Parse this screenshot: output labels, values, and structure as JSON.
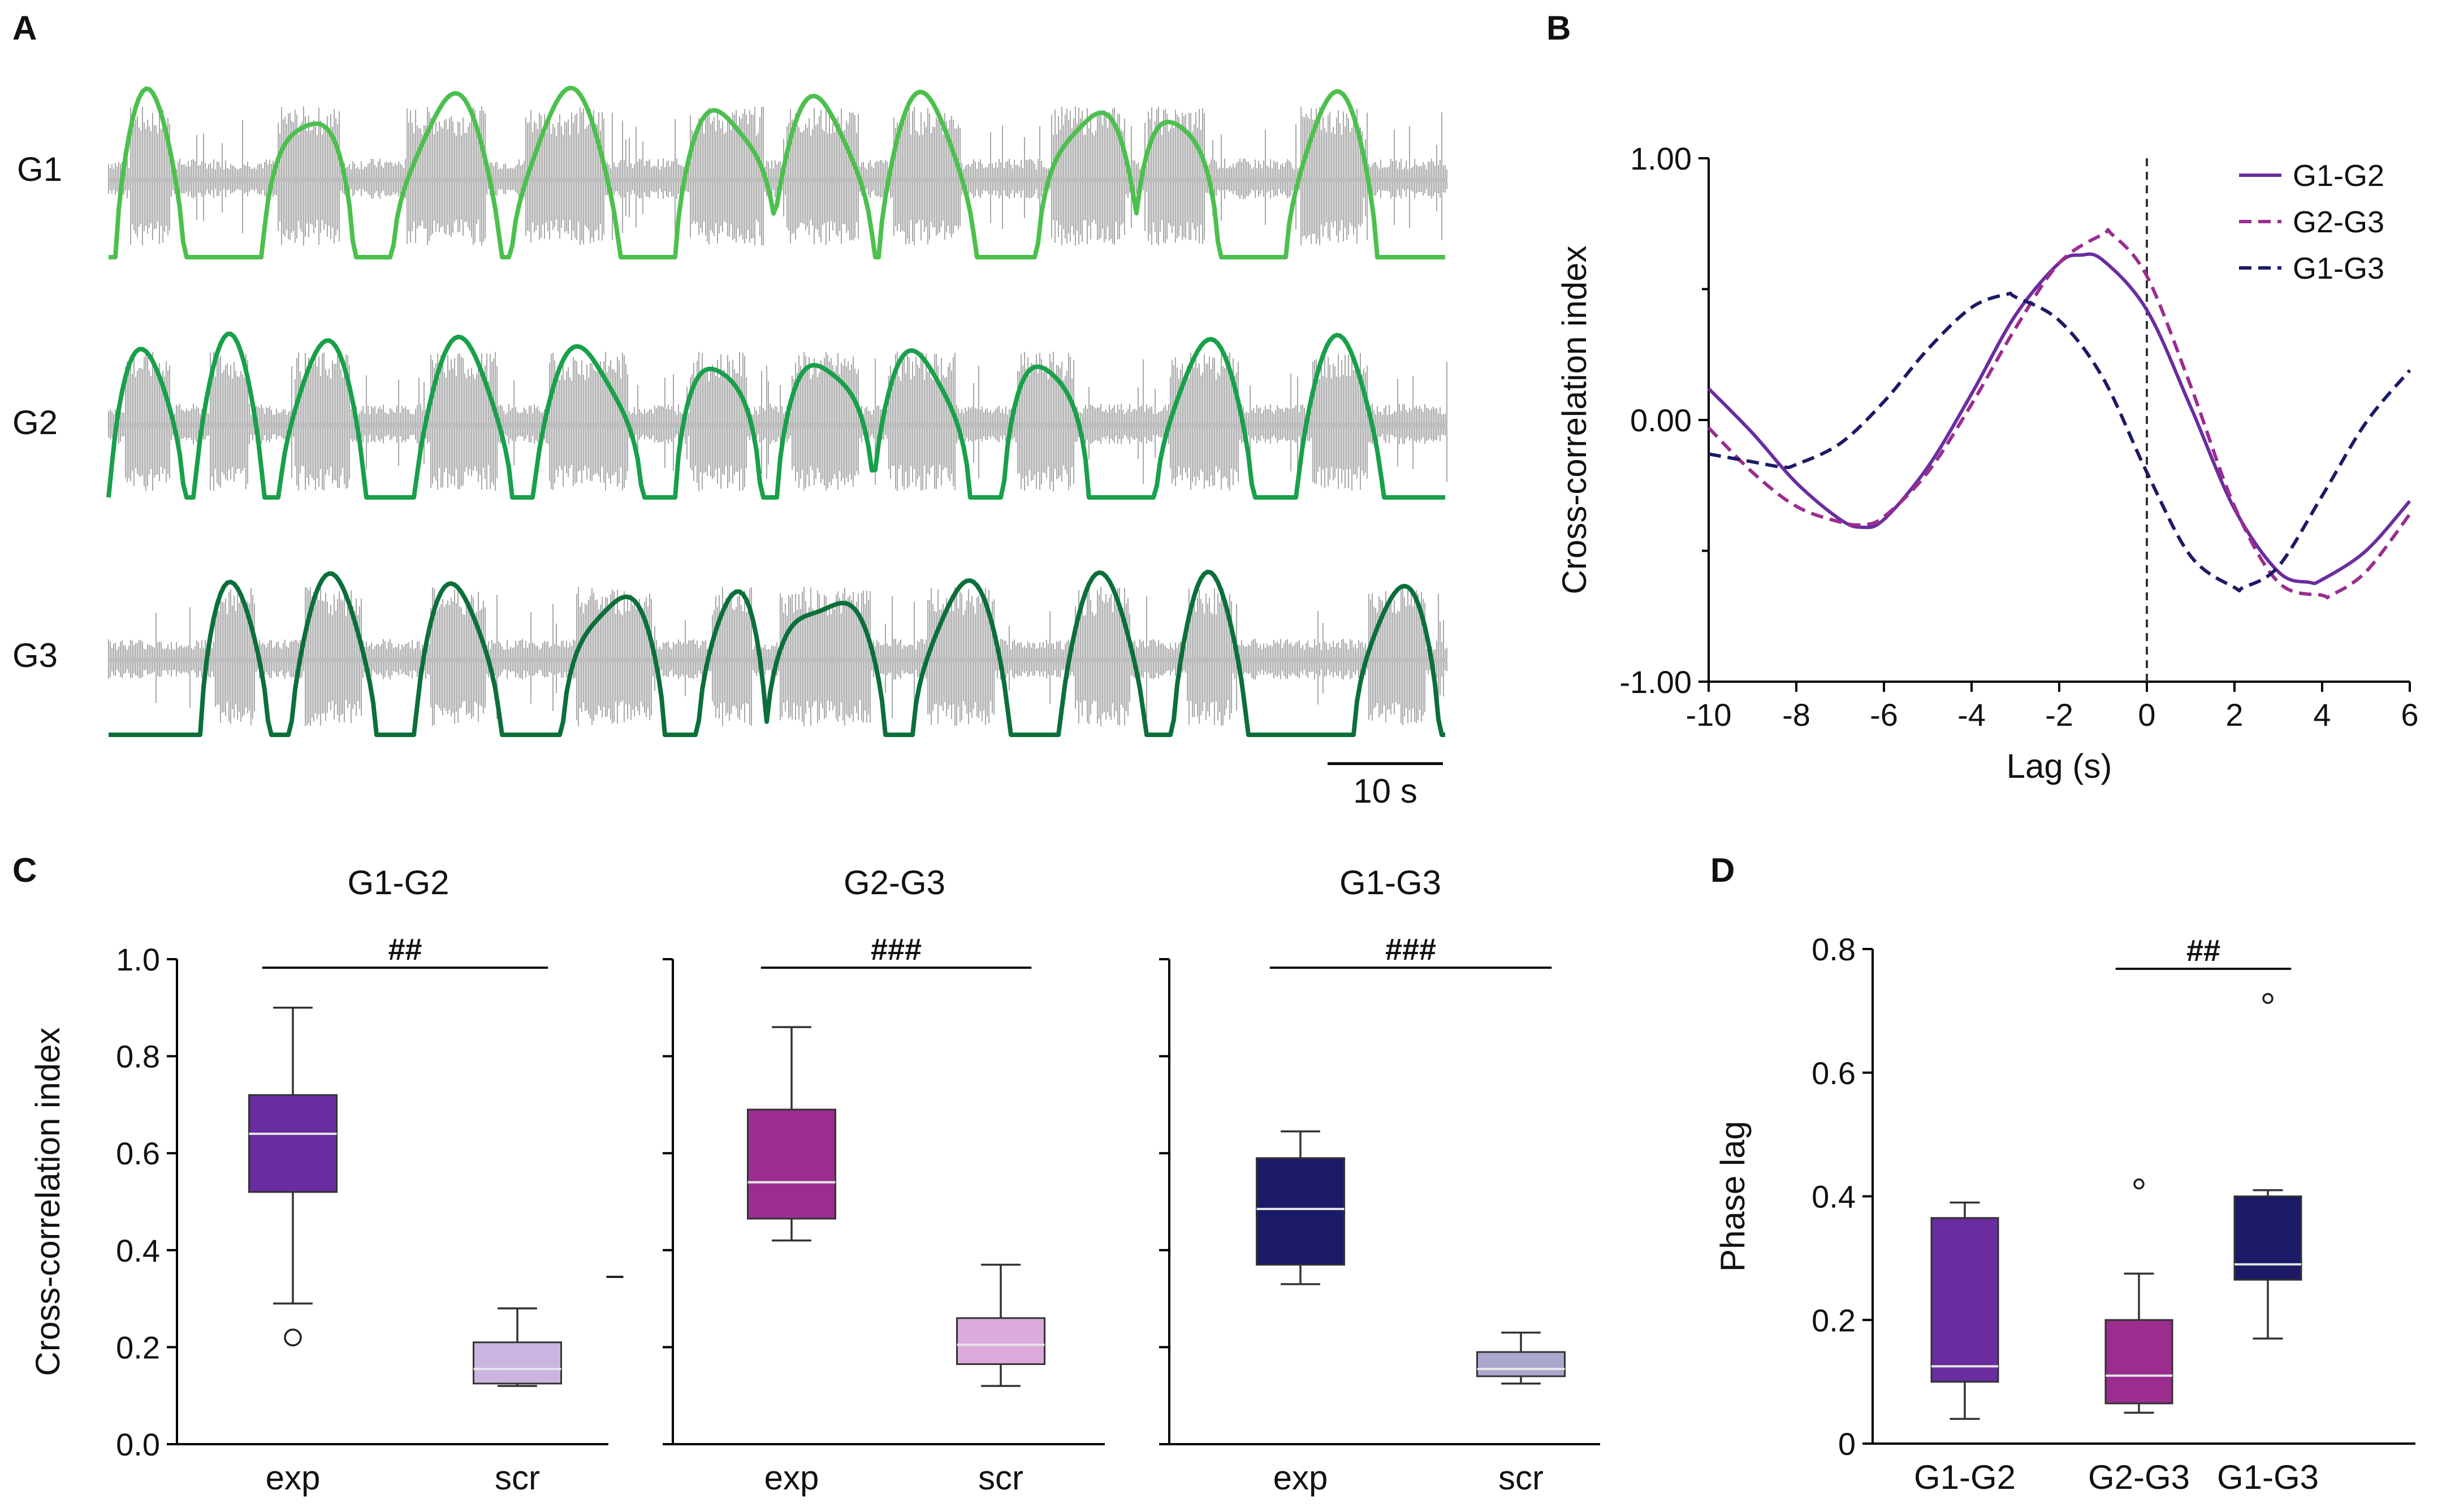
{
  "panel_labels": {
    "a": "A",
    "b": "B",
    "c": "C",
    "d": "D"
  },
  "colors": {
    "g1_envelope": "#4cc04e",
    "g2_envelope": "#18a04a",
    "g3_envelope": "#0c6f3a",
    "raw_trace": "#a8a8a8",
    "g1g2": "#6a2d9f",
    "g2g3": "#9b2d8f",
    "g1g3": "#1c1a66",
    "g1g2_scr": "#ccb4e0",
    "g2g3_scr": "#dcaadc",
    "g1g3_scr": "#aaa7cc"
  },
  "panel_a": {
    "trace_labels": [
      "G1",
      "G2",
      "G3"
    ],
    "scalebar_label": "10 s"
  },
  "chart_data": [
    {
      "id": "B",
      "type": "line",
      "xlabel": "Lag (s)",
      "ylabel": "Cross-correlation index",
      "xlim": [
        -10,
        6
      ],
      "ylim": [
        -1.0,
        1.0
      ],
      "xticks": [
        -10,
        -8,
        -6,
        -4,
        -2,
        0,
        2,
        4,
        6
      ],
      "xtick_labels": [
        "-10",
        "-8",
        "-6",
        "-4",
        "-2",
        "0",
        "2",
        "4",
        "6"
      ],
      "yticks": [
        -1,
        0,
        1
      ],
      "ytick_labels": [
        "-1.00",
        "0.00",
        "1.00"
      ],
      "vline_at": 0,
      "legend_position": "top-right",
      "series": [
        {
          "name": "G1-G2",
          "style": "solid",
          "x": [
            -10,
            -9,
            -8,
            -7,
            -6.5,
            -6,
            -5,
            -4,
            -3,
            -2,
            -1.5,
            -1,
            0,
            1,
            2,
            3,
            3.7,
            4,
            5,
            6
          ],
          "y": [
            0.12,
            -0.05,
            -0.24,
            -0.38,
            -0.41,
            -0.38,
            -0.18,
            0.1,
            0.4,
            0.6,
            0.63,
            0.61,
            0.42,
            0.05,
            -0.34,
            -0.58,
            -0.62,
            -0.61,
            -0.5,
            -0.31
          ]
        },
        {
          "name": "G2-G3",
          "style": "dashed",
          "x": [
            -10,
            -9,
            -8,
            -7,
            -6.5,
            -6,
            -5,
            -4,
            -3,
            -2,
            -1,
            -0.8,
            0,
            1,
            2,
            3,
            4,
            4.2,
            5,
            6
          ],
          "y": [
            -0.03,
            -0.2,
            -0.33,
            -0.39,
            -0.4,
            -0.37,
            -0.2,
            0.06,
            0.35,
            0.6,
            0.71,
            0.71,
            0.55,
            0.13,
            -0.33,
            -0.62,
            -0.67,
            -0.67,
            -0.58,
            -0.36
          ]
        },
        {
          "name": "G1-G3",
          "style": "dashed",
          "x": [
            -10,
            -9,
            -8.3,
            -8,
            -7,
            -6,
            -5,
            -4,
            -3.2,
            -3,
            -2,
            -1,
            0,
            1,
            2,
            2.2,
            3,
            4,
            5,
            6
          ],
          "y": [
            -0.13,
            -0.16,
            -0.18,
            -0.17,
            -0.09,
            0.07,
            0.27,
            0.43,
            0.48,
            0.47,
            0.38,
            0.16,
            -0.2,
            -0.52,
            -0.64,
            -0.64,
            -0.56,
            -0.29,
            -0.01,
            0.19
          ]
        }
      ]
    },
    {
      "id": "C1",
      "type": "box",
      "title": "G1-G2",
      "ylabel": "Cross-correlation index",
      "ylim": [
        0,
        1.0
      ],
      "yticks": [
        0,
        0.2,
        0.4,
        0.6,
        0.8,
        1.0
      ],
      "ytick_labels": [
        "0.0",
        "0.2",
        "0.4",
        "0.6",
        "0.8",
        "1.0"
      ],
      "categories": [
        "exp",
        "scr"
      ],
      "boxes": [
        {
          "whisker_low": 0.29,
          "q1": 0.52,
          "median": 0.64,
          "q3": 0.72,
          "whisker_high": 0.9,
          "outliers": [
            0.22
          ],
          "color": "#6a2d9f"
        },
        {
          "whisker_low": 0.12,
          "q1": 0.125,
          "median": 0.155,
          "q3": 0.21,
          "whisker_high": 0.28,
          "outliers": [],
          "outlier_marks": [
            0.345
          ],
          "color": "#ccb4e0"
        }
      ],
      "significance": "##"
    },
    {
      "id": "C2",
      "type": "box",
      "title": "G2-G3",
      "ylim": [
        0,
        1.0
      ],
      "yticks": [
        0,
        0.2,
        0.4,
        0.6,
        0.8,
        1.0
      ],
      "categories": [
        "exp",
        "scr"
      ],
      "boxes": [
        {
          "whisker_low": 0.42,
          "q1": 0.465,
          "median": 0.54,
          "q3": 0.69,
          "whisker_high": 0.86,
          "outliers": [],
          "color": "#9b2d8f"
        },
        {
          "whisker_low": 0.12,
          "q1": 0.165,
          "median": 0.205,
          "q3": 0.26,
          "whisker_high": 0.37,
          "outliers": [],
          "color": "#dcaadc"
        }
      ],
      "significance": "###"
    },
    {
      "id": "C3",
      "type": "box",
      "title": "G1-G3",
      "ylim": [
        0,
        1.0
      ],
      "yticks": [
        0,
        0.2,
        0.4,
        0.6,
        0.8,
        1.0
      ],
      "categories": [
        "exp",
        "scr"
      ],
      "boxes": [
        {
          "whisker_low": 0.33,
          "q1": 0.37,
          "median": 0.485,
          "q3": 0.59,
          "whisker_high": 0.645,
          "outliers": [],
          "color": "#1c1a66"
        },
        {
          "whisker_low": 0.125,
          "q1": 0.14,
          "median": 0.155,
          "q3": 0.19,
          "whisker_high": 0.23,
          "outliers": [],
          "color": "#aaa7cc"
        }
      ],
      "significance": "###"
    },
    {
      "id": "D",
      "type": "box",
      "ylabel": "Phase lag",
      "ylim": [
        0,
        0.8
      ],
      "yticks": [
        0,
        0.2,
        0.4,
        0.6,
        0.8
      ],
      "ytick_labels": [
        "0",
        "0.2",
        "0.4",
        "0.6",
        "0.8"
      ],
      "categories": [
        "G1-G2",
        "G2-G3",
        "G1-G3"
      ],
      "boxes": [
        {
          "whisker_low": 0.04,
          "q1": 0.1,
          "median": 0.125,
          "q3": 0.365,
          "whisker_high": 0.39,
          "outliers": [],
          "color": "#6a2d9f"
        },
        {
          "whisker_low": 0.05,
          "q1": 0.065,
          "median": 0.11,
          "q3": 0.2,
          "whisker_high": 0.275,
          "outliers": [
            0.42
          ],
          "color": "#9b2d8f"
        },
        {
          "whisker_low": 0.17,
          "q1": 0.265,
          "median": 0.29,
          "q3": 0.4,
          "whisker_high": 0.41,
          "outliers": [
            0.72
          ],
          "color": "#1c1a66"
        }
      ],
      "significance": "##",
      "significance_between": [
        "G2-G3",
        "G1-G3"
      ]
    }
  ]
}
